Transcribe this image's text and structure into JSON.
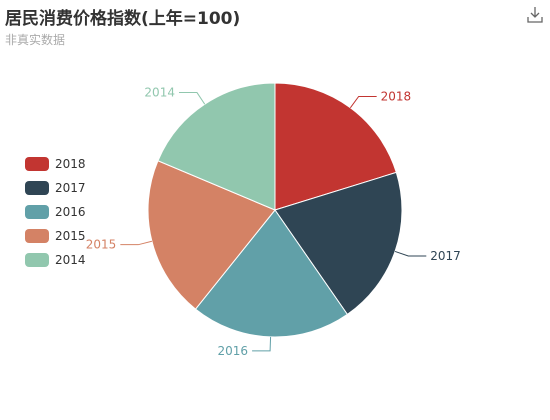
{
  "title": "居民消费价格指数(上年=100)",
  "subtitle": "非真实数据",
  "toolbar": {
    "download_icon": "download-icon"
  },
  "chart_data": {
    "type": "pie",
    "title": "居民消费价格指数(上年=100)",
    "subtitle": "非真实数据",
    "categories": [
      "2018",
      "2017",
      "2016",
      "2015",
      "2014"
    ],
    "values": [
      100.2,
      99.8,
      101.1,
      102.0,
      92.5
    ],
    "colors": [
      "#c23531",
      "#2f4554",
      "#61a0a8",
      "#d48265",
      "#91c7ae"
    ],
    "legend_position": "left",
    "hidden_categories": []
  }
}
